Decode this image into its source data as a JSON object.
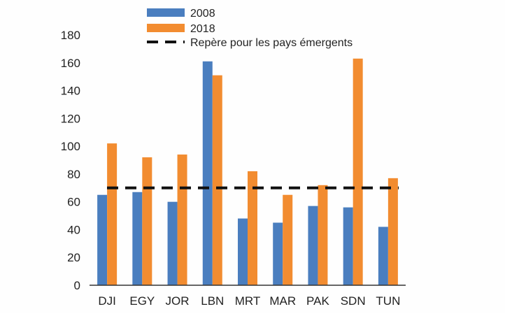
{
  "chart_data": {
    "type": "bar",
    "categories": [
      "DJI",
      "EGY",
      "JOR",
      "LBN",
      "MRT",
      "MAR",
      "PAK",
      "SDN",
      "TUN"
    ],
    "series": [
      {
        "name": "2008",
        "color": "#4a7ebf",
        "values": [
          65,
          67,
          60,
          161,
          48,
          45,
          57,
          56,
          42
        ]
      },
      {
        "name": "2018",
        "color": "#f28c30",
        "values": [
          102,
          92,
          94,
          151,
          82,
          65,
          72,
          163,
          77
        ]
      }
    ],
    "reference_line": {
      "name": "Repère pour les pays émergents",
      "value": 70,
      "color": "#111111",
      "style": "dashed"
    },
    "ylim": [
      0,
      180
    ],
    "yticks": [
      0,
      20,
      40,
      60,
      80,
      100,
      120,
      140,
      160,
      180
    ],
    "grid": false,
    "legend": "top",
    "title": "",
    "xlabel": "",
    "ylabel": ""
  }
}
